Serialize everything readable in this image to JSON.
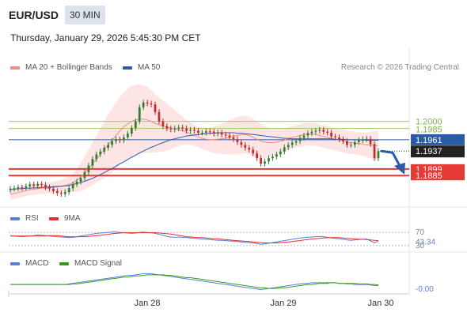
{
  "header": {
    "pair": "EUR/USD",
    "timeframe": "30 MIN",
    "datetime": "Thursday, January 29, 2026 5:45:30 PM CET"
  },
  "legend": {
    "ma20": {
      "label": "MA 20 + Bollinger Bands",
      "color": "#f28b82"
    },
    "ma50": {
      "label": "MA 50",
      "color": "#2b5aa8"
    },
    "rsi": {
      "label": "RSI",
      "color": "#5b7fd6"
    },
    "rsi_ma": {
      "label": "9MA",
      "color": "#e03030"
    },
    "macd": {
      "label": "MACD",
      "color": "#5b7fd6"
    },
    "macd_signal": {
      "label": "MACD Signal",
      "color": "#3a9a1a"
    }
  },
  "copyright": "Research © 2026 Trading Central",
  "price_labels": {
    "r2": "1.2000",
    "r1": "1.1985",
    "pivot": "1.1961",
    "last": "1.1937",
    "s1": "1.1899",
    "s2": "1.1885"
  },
  "colors": {
    "up": "#2e7d32",
    "down": "#c62828",
    "resistance": "#7cb342",
    "pivot": "#2b5aa8",
    "support": "#e53935",
    "band": "#fde0e0",
    "arrow": "#2b5aa8"
  },
  "x_labels": [
    "Jan 28",
    "Jan 29",
    "Jan 30"
  ],
  "rsi_labels": {
    "level": "70",
    "value": "43.34",
    "low": "30"
  },
  "macd_labels": {
    "value": "-0.00"
  },
  "chart_data": [
    {
      "type": "candlestick",
      "title": "",
      "ylim": [
        1.183,
        1.209
      ],
      "close": [
        1.1857,
        1.1858,
        1.186,
        1.1859,
        1.1862,
        1.1866,
        1.1863,
        1.1867,
        1.1865,
        1.186,
        1.1857,
        1.1852,
        1.1848,
        1.1846,
        1.185,
        1.1858,
        1.1866,
        1.1872,
        1.188,
        1.1892,
        1.1906,
        1.192,
        1.193,
        1.1936,
        1.1944,
        1.195,
        1.1958,
        1.1962,
        1.196,
        1.1966,
        1.1974,
        1.1986,
        1.2,
        1.203,
        1.204,
        1.2038,
        1.2036,
        1.202,
        1.2,
        1.199,
        1.1985,
        1.1983,
        1.1985,
        1.1987,
        1.1985,
        1.198,
        1.1982,
        1.198,
        1.1976,
        1.1976,
        1.1979,
        1.1978,
        1.1974,
        1.1976,
        1.1972,
        1.197,
        1.1966,
        1.1962,
        1.1956,
        1.195,
        1.1944,
        1.194,
        1.1932,
        1.1922,
        1.191,
        1.1915,
        1.1922,
        1.1925,
        1.193,
        1.1936,
        1.1945,
        1.195,
        1.1955,
        1.1958,
        1.1965,
        1.197,
        1.1975,
        1.1978,
        1.198,
        1.1982,
        1.1978,
        1.1976,
        1.1968,
        1.1966,
        1.1962,
        1.1958,
        1.195,
        1.195,
        1.1956,
        1.196,
        1.1962,
        1.1963,
        1.1952,
        1.1922,
        1.1937
      ],
      "ma20": [
        1.1845,
        1.1847,
        1.1849,
        1.1851,
        1.1853,
        1.1855,
        1.1856,
        1.1857,
        1.1858,
        1.1858,
        1.1859,
        1.186,
        1.1861,
        1.1862,
        1.1864,
        1.1866,
        1.187,
        1.1875,
        1.1882,
        1.189,
        1.19,
        1.191,
        1.192,
        1.193,
        1.194,
        1.195,
        1.196,
        1.197,
        1.198,
        1.1988,
        1.1995,
        1.2,
        1.2003,
        1.2005,
        1.2005,
        1.2003,
        1.2,
        1.1996,
        1.1993,
        1.199,
        1.1988,
        1.1986,
        1.1984,
        1.1982,
        1.198,
        1.1977,
        1.1974,
        1.197,
        1.1967,
        1.1964,
        1.1962,
        1.1961,
        1.1961,
        1.1962,
        1.1963,
        1.1964,
        1.1966,
        1.1968,
        1.197,
        1.1972,
        1.1972,
        1.197,
        1.1966,
        1.1962,
        1.1958,
        1.1956,
        1.1955,
        1.1955,
        1.1956,
        1.1958,
        1.196,
        1.1963,
        1.1966,
        1.1968,
        1.197,
        1.1972,
        1.1973,
        1.1973,
        1.1972,
        1.197,
        1.1968,
        1.1966,
        1.1964,
        1.1962,
        1.196,
        1.1958,
        1.1956,
        1.1955,
        1.1954,
        1.1953,
        1.1952,
        1.195,
        1.195,
        1.1949,
        1.1949
      ],
      "ma50": [
        1.1855,
        1.1856,
        1.1857,
        1.1857,
        1.1858,
        1.1858,
        1.1859,
        1.1859,
        1.186,
        1.186,
        1.1861,
        1.1861,
        1.1862,
        1.1862,
        1.1863,
        1.1864,
        1.1866,
        1.1868,
        1.187,
        1.1873,
        1.1876,
        1.1879,
        1.1883,
        1.1887,
        1.1891,
        1.1896,
        1.19,
        1.1905,
        1.191,
        1.1914,
        1.1919,
        1.1924,
        1.1928,
        1.1933,
        1.1937,
        1.1941,
        1.1945,
        1.1948,
        1.1952,
        1.1955,
        1.1958,
        1.1961,
        1.1963,
        1.1965,
        1.1967,
        1.1969,
        1.197,
        1.1971,
        1.1972,
        1.1973,
        1.1974,
        1.1975,
        1.1975,
        1.1976,
        1.1976,
        1.1976,
        1.1976,
        1.1976,
        1.1975,
        1.1975,
        1.1974,
        1.1973,
        1.1972,
        1.1971,
        1.197,
        1.1969,
        1.1968,
        1.1967,
        1.1966,
        1.1965,
        1.1964,
        1.1964,
        1.1963,
        1.1963,
        1.1963,
        1.1963,
        1.1963,
        1.1963,
        1.1963,
        1.1963,
        1.1963,
        1.1963,
        1.1963,
        1.1962,
        1.1962,
        1.1962,
        1.1961,
        1.1961,
        1.1961,
        1.1961,
        1.196,
        1.196,
        1.196,
        1.196,
        1.196
      ],
      "band_width": [
        0.0012,
        0.0012,
        0.0012,
        0.0012,
        0.0012,
        0.0012,
        0.0012,
        0.0012,
        0.0012,
        0.0012,
        0.0012,
        0.0012,
        0.0013,
        0.0014,
        0.0015,
        0.0017,
        0.002,
        0.0025,
        0.003,
        0.0035,
        0.004,
        0.0045,
        0.005,
        0.0055,
        0.006,
        0.0065,
        0.0068,
        0.007,
        0.0072,
        0.0074,
        0.0075,
        0.0075,
        0.0075,
        0.0074,
        0.0072,
        0.007,
        0.0066,
        0.0062,
        0.0058,
        0.0054,
        0.005,
        0.0045,
        0.004,
        0.0035,
        0.003,
        0.0026,
        0.0024,
        0.0022,
        0.0022,
        0.0023,
        0.0024,
        0.0026,
        0.0028,
        0.003,
        0.0032,
        0.0034,
        0.0036,
        0.0038,
        0.004,
        0.004,
        0.004,
        0.004,
        0.004,
        0.0038,
        0.0036,
        0.0034,
        0.0032,
        0.003,
        0.0028,
        0.0027,
        0.0026,
        0.0025,
        0.0024,
        0.0024,
        0.0024,
        0.0024,
        0.0024,
        0.0024,
        0.0024,
        0.0024,
        0.0024,
        0.0024,
        0.0024,
        0.0024,
        0.0024,
        0.0024,
        0.0024,
        0.0024,
        0.0024,
        0.0024,
        0.0025,
        0.0026,
        0.0028,
        0.003,
        0.0032
      ],
      "levels": {
        "r2": 1.2,
        "r1": 1.1985,
        "pivot": 1.1961,
        "s1": 1.1899,
        "s2": 1.1885
      },
      "last_price": 1.1937
    },
    {
      "type": "line",
      "name": "RSI",
      "ylim": [
        20,
        80
      ],
      "levels": [
        70,
        30
      ],
      "rsi": [
        60,
        59,
        58,
        57,
        58,
        59,
        60,
        62,
        61,
        60,
        59,
        58,
        57,
        56,
        55,
        54,
        55,
        57,
        59,
        61,
        63,
        65,
        67,
        68,
        69,
        70,
        71,
        71,
        70,
        69,
        68,
        67,
        68,
        70,
        71,
        70,
        69,
        67,
        64,
        61,
        58,
        56,
        55,
        56,
        55,
        54,
        53,
        52,
        51,
        50,
        49,
        48,
        47,
        46,
        46,
        45,
        44,
        43,
        42,
        41,
        40,
        39,
        38,
        36,
        34,
        35,
        37,
        39,
        41,
        43,
        45,
        47,
        49,
        51,
        53,
        54,
        55,
        56,
        57,
        58,
        57,
        55,
        53,
        52,
        51,
        49,
        47,
        46,
        47,
        48,
        49,
        50,
        44,
        38,
        43.34
      ],
      "rsi_ma": [
        59,
        59,
        59,
        59,
        59,
        59,
        59,
        59,
        59,
        59,
        60,
        60,
        60,
        59,
        58,
        57,
        57,
        57,
        57,
        57,
        58,
        59,
        60,
        61,
        63,
        64,
        66,
        67,
        68,
        69,
        69,
        69,
        69,
        69,
        69,
        69,
        69,
        69,
        68,
        67,
        66,
        65,
        63,
        61,
        59,
        57,
        56,
        55,
        54,
        54,
        53,
        52,
        51,
        50,
        49,
        48,
        47,
        46,
        45,
        44,
        43,
        42,
        41,
        40,
        39,
        38,
        38,
        38,
        38,
        39,
        40,
        41,
        42,
        44,
        45,
        47,
        48,
        50,
        51,
        52,
        53,
        54,
        54,
        54,
        54,
        53,
        52,
        51,
        50,
        49,
        49,
        48,
        47,
        46,
        45
      ]
    },
    {
      "type": "line",
      "name": "MACD",
      "last_value": -0.0,
      "macd": [
        -2,
        -2,
        -2,
        -2,
        -2,
        -2,
        -2,
        -2,
        -2,
        -2,
        -2,
        -2,
        -2,
        -2,
        -2,
        -1,
        0,
        1,
        2,
        3,
        4,
        5,
        6,
        7,
        8,
        9,
        10,
        11,
        12,
        13,
        14,
        14,
        15,
        16,
        17,
        17,
        17,
        16,
        15,
        14,
        13,
        12,
        11,
        10,
        9,
        8,
        7,
        6,
        5,
        4,
        3,
        2,
        1,
        0,
        -1,
        -2,
        -3,
        -4,
        -5,
        -6,
        -7,
        -8,
        -9,
        -10,
        -11,
        -10,
        -9,
        -8,
        -7,
        -6,
        -5,
        -4,
        -3,
        -2,
        -1,
        0,
        0,
        1,
        1,
        1,
        1,
        1,
        1,
        1,
        0,
        0,
        -1,
        -1,
        -2,
        -2,
        -2,
        -2,
        -3,
        -4,
        -4
      ],
      "macd_signal": [
        -2,
        -2,
        -2,
        -2,
        -2,
        -2,
        -2,
        -2,
        -2,
        -2,
        -2,
        -2,
        -2,
        -2,
        -2,
        -2,
        -1,
        -1,
        0,
        1,
        2,
        3,
        4,
        5,
        6,
        7,
        8,
        9,
        10,
        11,
        11,
        12,
        13,
        13,
        14,
        15,
        15,
        15,
        15,
        15,
        14,
        14,
        13,
        12,
        11,
        10,
        10,
        9,
        8,
        7,
        6,
        5,
        4,
        3,
        2,
        1,
        0,
        -1,
        -2,
        -3,
        -4,
        -5,
        -6,
        -7,
        -8,
        -8,
        -9,
        -9,
        -9,
        -8,
        -8,
        -7,
        -6,
        -5,
        -4,
        -3,
        -2,
        -2,
        -1,
        0,
        0,
        0,
        1,
        1,
        0,
        0,
        0,
        0,
        0,
        -1,
        -1,
        -1,
        -2,
        -2,
        -3
      ]
    }
  ]
}
